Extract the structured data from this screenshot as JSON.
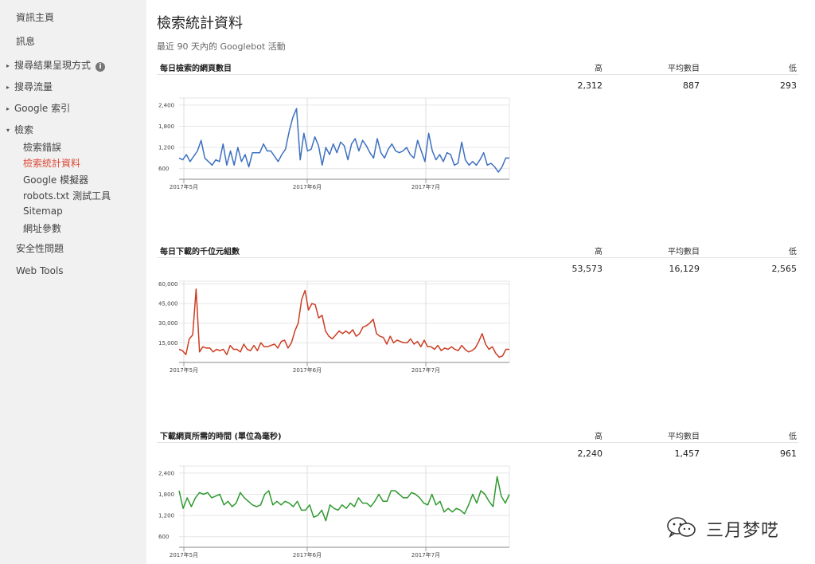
{
  "sidebar": {
    "items": [
      {
        "label": "資訊主頁",
        "level": 1,
        "caret": ""
      },
      {
        "label": "訊息",
        "level": 1,
        "caret": ""
      },
      {
        "label": "搜尋結果呈現方式",
        "level": 1,
        "caret": "▸",
        "info_icon": "info-icon"
      },
      {
        "label": "搜尋流量",
        "level": 1,
        "caret": "▸"
      },
      {
        "label": "Google 索引",
        "level": 1,
        "caret": "▸"
      },
      {
        "label": "檢索",
        "level": 1,
        "caret": "▾"
      },
      {
        "label": "檢索錯誤",
        "level": 2
      },
      {
        "label": "檢索統計資料",
        "level": 2,
        "active": true
      },
      {
        "label": "Google 模擬器",
        "level": 2
      },
      {
        "label": "robots.txt 測試工具",
        "level": 2
      },
      {
        "label": "Sitemap",
        "level": 2
      },
      {
        "label": "網址參數",
        "level": 2
      },
      {
        "label": "安全性問題",
        "level": 1,
        "caret": ""
      },
      {
        "label": "Web Tools",
        "level": 1,
        "caret": ""
      }
    ],
    "info_icon_glyph": "i",
    "active_color": "#dd4b39"
  },
  "main": {
    "title": "檢索統計資料",
    "subtitle": "最近 90 天內的 Googlebot 活動",
    "stat_headers": {
      "high": "高",
      "avg": "平均數目",
      "low": "低"
    }
  },
  "sections": [
    {
      "title": "每日檢索的網頁數目",
      "high": "2,312",
      "avg": "887",
      "low": "293"
    },
    {
      "title": "每日下載的千位元組數",
      "high": "53,573",
      "avg": "16,129",
      "low": "2,565"
    },
    {
      "title": "下載網頁所需的時間 (單位為毫秒)",
      "high": "2,240",
      "avg": "1,457",
      "low": "961"
    }
  ],
  "chart_data": [
    {
      "type": "line",
      "color": "#3d6fc0",
      "y_ticks": [
        600,
        1200,
        1800,
        2400
      ],
      "y_tick_labels": [
        "600",
        "1,200",
        "1,800",
        "2,400"
      ],
      "ylim": [
        300,
        2600
      ],
      "x_labels": [
        "2017年5月",
        "2017年6月",
        "2017年7月"
      ],
      "values": [
        900,
        850,
        1000,
        800,
        950,
        1100,
        1400,
        900,
        800,
        700,
        850,
        800,
        1300,
        700,
        1100,
        700,
        1200,
        800,
        1000,
        650,
        1050,
        1050,
        1050,
        1300,
        1100,
        1100,
        950,
        800,
        1000,
        1150,
        1650,
        2050,
        2300,
        850,
        1600,
        1100,
        1150,
        1500,
        1250,
        700,
        1200,
        1000,
        1300,
        1050,
        1350,
        1250,
        850,
        1300,
        1450,
        1100,
        1400,
        1250,
        1050,
        900,
        1450,
        1050,
        900,
        1150,
        1300,
        1100,
        1050,
        1100,
        1200,
        1000,
        900,
        1400,
        1100,
        800,
        1600,
        1100,
        850,
        1000,
        800,
        1050,
        1000,
        700,
        750,
        1350,
        850,
        700,
        800,
        700,
        850,
        1050,
        700,
        750,
        650,
        500,
        650,
        900,
        900
      ]
    },
    {
      "type": "line",
      "color": "#cc3d22",
      "y_ticks": [
        15000,
        30000,
        45000,
        60000
      ],
      "y_tick_labels": [
        "15,000",
        "30,000",
        "45,000",
        "60,000"
      ],
      "ylim": [
        0,
        62000
      ],
      "x_labels": [
        "2017年5月",
        "2017年6月",
        "2017年7月"
      ],
      "values": [
        10000,
        9000,
        6000,
        18000,
        21000,
        56000,
        8000,
        12000,
        11000,
        11000,
        8000,
        10000,
        9000,
        10000,
        6000,
        13000,
        10000,
        10000,
        8000,
        14000,
        10000,
        9000,
        13000,
        9000,
        15000,
        12000,
        12000,
        13000,
        14000,
        11000,
        16000,
        17000,
        11000,
        15000,
        24000,
        30000,
        48000,
        55000,
        40000,
        45000,
        44000,
        34000,
        36000,
        24000,
        20000,
        18000,
        21000,
        24000,
        22000,
        24000,
        22000,
        25000,
        20000,
        22000,
        27000,
        28000,
        30000,
        33000,
        22000,
        20000,
        19000,
        14000,
        20000,
        15000,
        17000,
        16000,
        15000,
        15000,
        18000,
        14000,
        16000,
        12000,
        17000,
        12000,
        12000,
        10000,
        13000,
        9000,
        11000,
        10000,
        12000,
        10000,
        9000,
        13000,
        10000,
        8000,
        9000,
        11000,
        16000,
        22000,
        14000,
        10000,
        12000,
        7000,
        4000,
        5000,
        10000,
        10000
      ]
    },
    {
      "type": "line",
      "color": "#2f9a2f",
      "y_ticks": [
        600,
        1200,
        1800,
        2400
      ],
      "y_tick_labels": [
        "600",
        "1,200",
        "1,800",
        "2,400"
      ],
      "ylim": [
        300,
        2600
      ],
      "x_labels": [
        "2017年5月",
        "2017年6月",
        "2017年7月"
      ],
      "values": [
        1900,
        1400,
        1700,
        1450,
        1700,
        1850,
        1800,
        1850,
        1700,
        1750,
        1800,
        1500,
        1600,
        1450,
        1550,
        1850,
        1700,
        1600,
        1500,
        1450,
        1500,
        1800,
        1900,
        1500,
        1600,
        1500,
        1600,
        1550,
        1450,
        1600,
        1350,
        1350,
        1500,
        1150,
        1200,
        1350,
        1050,
        1500,
        1400,
        1350,
        1500,
        1400,
        1550,
        1450,
        1700,
        1550,
        1550,
        1450,
        1600,
        1800,
        1600,
        1600,
        1900,
        1900,
        1800,
        1700,
        1700,
        1850,
        1800,
        1700,
        1550,
        1500,
        1800,
        1500,
        1600,
        1300,
        1400,
        1300,
        1400,
        1350,
        1250,
        1500,
        1800,
        1550,
        1900,
        1800,
        1600,
        1450,
        2300,
        1750,
        1550,
        1800
      ]
    }
  ],
  "watermark": {
    "text": "三月梦呓",
    "logo": "wechat-logo"
  }
}
